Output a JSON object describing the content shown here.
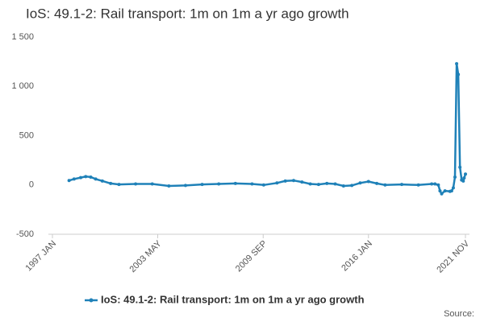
{
  "chart_data": {
    "type": "line",
    "title": "IoS: 49.1-2: Rail transport: 1m on 1m a yr ago growth",
    "source": "Source:",
    "x": [
      1998.0,
      1998.3,
      1998.7,
      1999.0,
      1999.3,
      1999.6,
      2000.0,
      2000.5,
      2001.0,
      2002.0,
      2003.0,
      2004.0,
      2005.0,
      2006.0,
      2007.0,
      2008.0,
      2009.0,
      2009.7,
      2010.5,
      2011.0,
      2011.5,
      2012.0,
      2012.5,
      2013.0,
      2013.5,
      2014.0,
      2014.5,
      2015.0,
      2015.5,
      2016.0,
      2016.5,
      2017.0,
      2018.0,
      2019.0,
      2019.8,
      2020.0,
      2020.2,
      2020.3,
      2020.4,
      2020.6,
      2020.9,
      2021.0,
      2021.1,
      2021.2,
      2021.3,
      2021.4,
      2021.5,
      2021.6,
      2021.7,
      2021.75,
      2021.83
    ],
    "series": [
      {
        "name": "IoS: 49.1-2: Rail transport: 1m on 1m a yr ago growth",
        "color": "#1f81b8",
        "values": [
          45,
          60,
          75,
          85,
          80,
          60,
          40,
          15,
          5,
          10,
          10,
          -10,
          -5,
          5,
          10,
          15,
          10,
          0,
          20,
          40,
          45,
          30,
          10,
          5,
          15,
          10,
          -10,
          -5,
          20,
          35,
          15,
          0,
          5,
          0,
          10,
          10,
          0,
          -60,
          -90,
          -60,
          -65,
          -60,
          -30,
          80,
          1230,
          1120,
          180,
          50,
          40,
          70,
          110
        ]
      }
    ],
    "xlim": [
      1997.0,
      2021.83
    ],
    "xticks": [
      {
        "value": 1997.0,
        "label": "1997 JAN"
      },
      {
        "value": 2003.33,
        "label": "2003 MAY"
      },
      {
        "value": 2009.67,
        "label": "2009 SEP"
      },
      {
        "value": 2016.0,
        "label": "2016 JAN"
      },
      {
        "value": 2021.83,
        "label": "2021 NOV"
      }
    ],
    "ylim": [
      -500,
      1500
    ],
    "yticks": [
      {
        "value": 1500,
        "label": "1 500"
      },
      {
        "value": 1000,
        "label": "1 000"
      },
      500,
      0,
      -500
    ],
    "grid": false
  }
}
